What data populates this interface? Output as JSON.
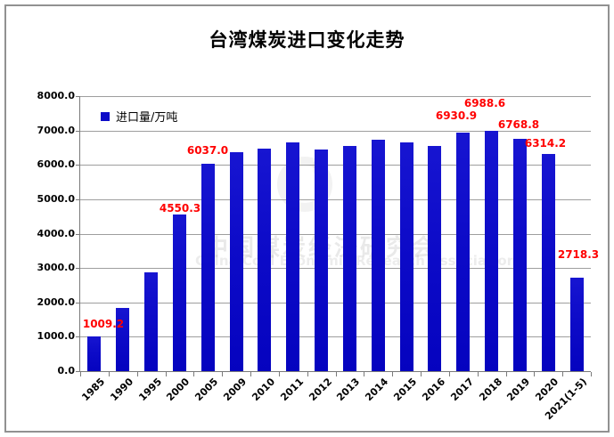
{
  "chart_data": {
    "type": "bar",
    "title": "台湾煤炭进口变化走势",
    "legend": [
      "进口量/万吨"
    ],
    "legend_position": "top-left-inside",
    "categories": [
      "1985",
      "1990",
      "1995",
      "2000",
      "2005",
      "2009",
      "2010",
      "2011",
      "2012",
      "2013",
      "2014",
      "2015",
      "2016",
      "2017",
      "2018",
      "2019",
      "2020",
      "2021(1-5)"
    ],
    "values": [
      1009.2,
      1840,
      2870,
      4550.3,
      6037.0,
      6360,
      6480,
      6650,
      6450,
      6540,
      6720,
      6650,
      6550,
      6930.9,
      6988.6,
      6768.8,
      6314.2,
      2718.3
    ],
    "data_labels": [
      {
        "category": "1985",
        "text": "1009.2",
        "dx": 10,
        "gap": 8
      },
      {
        "category": "2000",
        "text": "4550.3",
        "dx": 1,
        "gap": 1
      },
      {
        "category": "2005",
        "text": "6037.0",
        "dx": 0,
        "gap": 9
      },
      {
        "category": "2017",
        "text": "6930.9",
        "dx": -8,
        "gap": 13
      },
      {
        "category": "2018",
        "text": "6988.6",
        "dx": -8,
        "gap": 25
      },
      {
        "category": "2019",
        "text": "6768.8",
        "dx": -1,
        "gap": 10
      },
      {
        "category": "2020",
        "text": "6314.2",
        "dx": -3,
        "gap": 6
      },
      {
        "category": "2021(1-5)",
        "text": "2718.3",
        "dx": 2,
        "gap": 20
      }
    ],
    "xlabel": "",
    "ylabel": "",
    "ylim": [
      0,
      8000
    ],
    "ytick_step": 1000,
    "grid": true,
    "legend_visible": true,
    "bar_color": "#0d0bc8",
    "data_label_color": "#ff0000",
    "watermark": {
      "line1": "中国煤炭经济研究会",
      "line2": "China Coal Economic Research Association"
    }
  }
}
